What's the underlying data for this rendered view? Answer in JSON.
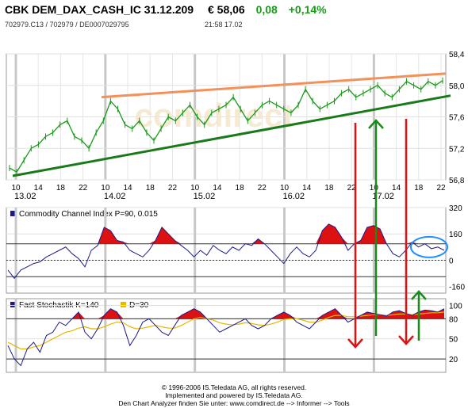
{
  "header": {
    "name": "CBK DEM_DAX_CASH_IC 31.12.209",
    "price": "€ 58,06",
    "change_abs": "0,08",
    "change_pct": "+0,14%",
    "ids": "702979.C13  /  702979  /  DE0007029795",
    "time": "21:58   17.02"
  },
  "watermark": "comdirect",
  "footer": {
    "line1": "© 1996-2006 IS.Teledata AG, all rights reserved.",
    "line2": "Implemented and powered by IS.Teledata AG.",
    "line3": "Den Chart Analyzer finden Sie unter: www.comdirect.de --> Informer --> Tools"
  },
  "chart_data": [
    {
      "type": "line",
      "panel": "price",
      "x_ticks": [
        "10",
        "14",
        "18",
        "22",
        "10",
        "14",
        "18",
        "22",
        "10",
        "14",
        "18",
        "22",
        "10",
        "14",
        "18",
        "22",
        "10",
        "14",
        "18",
        "22"
      ],
      "day_labels": [
        "13.02",
        "14.02",
        "15.02",
        "16.02",
        "17.02"
      ],
      "yticks": [
        "58,4",
        "58,0",
        "57,6",
        "57,2",
        "56,8"
      ],
      "ylim": [
        56.8,
        58.4
      ],
      "series_colors": {
        "price": "#1a9a1a",
        "upper_trendline": "#f4915a",
        "lower_trendline": "#1a7a1a"
      },
      "price_path": [
        56.95,
        56.9,
        57.05,
        57.2,
        57.25,
        57.35,
        57.4,
        57.5,
        57.55,
        57.35,
        57.3,
        57.2,
        57.4,
        57.55,
        57.8,
        57.7,
        57.5,
        57.45,
        57.55,
        57.4,
        57.3,
        57.45,
        57.6,
        57.55,
        57.65,
        57.75,
        57.6,
        57.5,
        57.65,
        57.7,
        57.75,
        57.85,
        57.7,
        57.55,
        57.65,
        57.75,
        57.8,
        57.75,
        57.7,
        57.65,
        57.75,
        57.95,
        57.8,
        57.7,
        57.75,
        57.8,
        57.9,
        57.95,
        57.85,
        57.9,
        57.95,
        58.0,
        57.9,
        57.85,
        57.95,
        58.05,
        58.0,
        57.95,
        58.05,
        58.0,
        58.06
      ],
      "upper_trendline": {
        "start": 57.85,
        "end": 58.15
      },
      "lower_trendline": {
        "start": 56.85,
        "end": 57.87
      }
    },
    {
      "type": "area",
      "panel": "cci",
      "legend": "Commodity Channel Index P=90, 0.015",
      "yticks": [
        "320",
        "160",
        "0",
        "-160"
      ],
      "ylim": [
        -200,
        320
      ],
      "reference_lines": [
        100,
        -100
      ],
      "fill_color": "#dd1111",
      "line_color": "#1a1a8a",
      "values": [
        -60,
        -110,
        -60,
        -40,
        -20,
        -10,
        20,
        40,
        60,
        80,
        40,
        10,
        -40,
        60,
        90,
        200,
        180,
        120,
        110,
        60,
        40,
        20,
        60,
        120,
        200,
        160,
        120,
        90,
        60,
        20,
        60,
        30,
        90,
        60,
        40,
        80,
        60,
        100,
        90,
        130,
        100,
        60,
        20,
        -20,
        40,
        80,
        40,
        20,
        60,
        180,
        220,
        200,
        140,
        60,
        100,
        120,
        200,
        210,
        190,
        100,
        40,
        20,
        60,
        110,
        80,
        100,
        70,
        80,
        60
      ]
    },
    {
      "type": "line",
      "panel": "stochastic",
      "legend_k": "Fast Stochastik K=140",
      "legend_d": "D=30",
      "yticks": [
        "100",
        "80",
        "50",
        "20"
      ],
      "ylim": [
        0,
        110
      ],
      "reference_lines": [
        80,
        20
      ],
      "k_color": "#1a1a8a",
      "d_color": "#e6b800",
      "fill_color": "#dd1111",
      "k_values": [
        40,
        20,
        10,
        35,
        45,
        30,
        55,
        60,
        75,
        70,
        80,
        90,
        60,
        50,
        65,
        85,
        95,
        90,
        70,
        40,
        55,
        75,
        80,
        70,
        60,
        55,
        70,
        85,
        90,
        95,
        90,
        80,
        70,
        60,
        65,
        70,
        75,
        80,
        70,
        65,
        70,
        80,
        85,
        90,
        85,
        75,
        70,
        65,
        75,
        85,
        90,
        95,
        85,
        75,
        80,
        85,
        90,
        88,
        86,
        84,
        90,
        92,
        88,
        85,
        90,
        93,
        92,
        90,
        95
      ],
      "d_values": [
        45,
        40,
        35,
        35,
        38,
        40,
        45,
        50,
        55,
        60,
        62,
        66,
        68,
        65,
        65,
        68,
        72,
        75,
        74,
        68,
        65,
        66,
        68,
        70,
        68,
        66,
        66,
        70,
        75,
        80,
        82,
        80,
        78,
        74,
        72,
        71,
        72,
        74,
        73,
        71,
        70,
        72,
        75,
        79,
        80,
        80,
        78,
        75,
        75,
        78,
        82,
        85,
        85,
        83,
        83,
        84,
        85,
        86,
        86,
        85,
        86,
        87,
        87,
        86,
        87,
        88,
        89,
        89,
        90
      ]
    }
  ]
}
